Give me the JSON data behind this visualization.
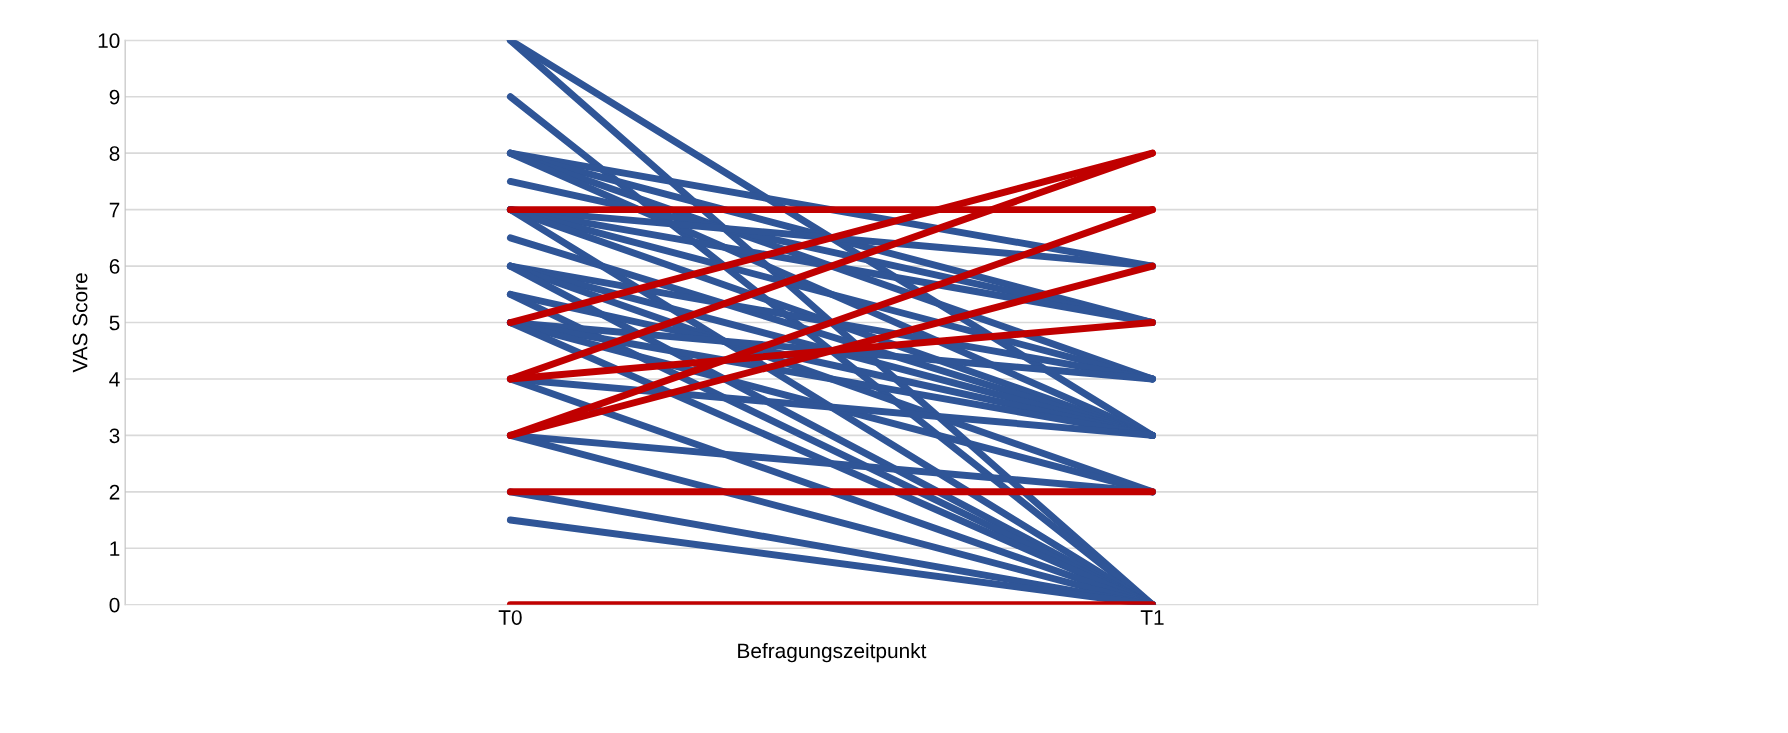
{
  "chart_data": {
    "type": "line",
    "xlabel": "Befragungszeitpunkt",
    "ylabel": "VAS Score",
    "categories": [
      "T0",
      "T1"
    ],
    "ylim": [
      0,
      10
    ],
    "yticks": [
      0,
      1,
      2,
      3,
      4,
      5,
      6,
      7,
      8,
      9,
      10
    ],
    "grid": "y",
    "legend": false,
    "series": [
      {
        "color": "#2f5597",
        "values": [
          10,
          0
        ]
      },
      {
        "color": "#2f5597",
        "values": [
          10,
          3
        ]
      },
      {
        "color": "#2f5597",
        "values": [
          9,
          0
        ]
      },
      {
        "color": "#2f5597",
        "values": [
          8,
          6
        ]
      },
      {
        "color": "#2f5597",
        "values": [
          8,
          5
        ]
      },
      {
        "color": "#2f5597",
        "values": [
          8,
          4
        ]
      },
      {
        "color": "#2f5597",
        "values": [
          8,
          3
        ]
      },
      {
        "color": "#2f5597",
        "values": [
          7.5,
          5
        ]
      },
      {
        "color": "#2f5597",
        "values": [
          7,
          6
        ]
      },
      {
        "color": "#2f5597",
        "values": [
          7,
          5
        ]
      },
      {
        "color": "#2f5597",
        "values": [
          7,
          4
        ]
      },
      {
        "color": "#2f5597",
        "values": [
          7,
          3
        ]
      },
      {
        "color": "#2f5597",
        "values": [
          7,
          0
        ]
      },
      {
        "color": "#2f5597",
        "values": [
          6.5,
          3
        ]
      },
      {
        "color": "#2f5597",
        "values": [
          6,
          4
        ]
      },
      {
        "color": "#2f5597",
        "values": [
          6,
          3
        ]
      },
      {
        "color": "#2f5597",
        "values": [
          6,
          2
        ]
      },
      {
        "color": "#2f5597",
        "values": [
          6,
          0
        ]
      },
      {
        "color": "#2f5597",
        "values": [
          5.5,
          3
        ]
      },
      {
        "color": "#2f5597",
        "values": [
          5.5,
          0
        ]
      },
      {
        "color": "#2f5597",
        "values": [
          5,
          4
        ]
      },
      {
        "color": "#2f5597",
        "values": [
          5,
          3
        ]
      },
      {
        "color": "#2f5597",
        "values": [
          5,
          2
        ]
      },
      {
        "color": "#2f5597",
        "values": [
          5,
          0
        ]
      },
      {
        "color": "#2f5597",
        "values": [
          4,
          3
        ]
      },
      {
        "color": "#2f5597",
        "values": [
          4,
          0
        ]
      },
      {
        "color": "#2f5597",
        "values": [
          3,
          2
        ]
      },
      {
        "color": "#2f5597",
        "values": [
          3,
          0
        ]
      },
      {
        "color": "#2f5597",
        "values": [
          2,
          0
        ]
      },
      {
        "color": "#2f5597",
        "values": [
          1.5,
          0
        ]
      },
      {
        "color": "#c00000",
        "values": [
          0,
          0
        ]
      },
      {
        "color": "#c00000",
        "values": [
          2,
          2
        ]
      },
      {
        "color": "#c00000",
        "values": [
          7,
          7
        ]
      },
      {
        "color": "#c00000",
        "values": [
          5,
          8
        ]
      },
      {
        "color": "#c00000",
        "values": [
          4,
          8
        ]
      },
      {
        "color": "#c00000",
        "values": [
          3,
          7
        ]
      },
      {
        "color": "#c00000",
        "values": [
          3,
          6
        ]
      },
      {
        "color": "#c00000",
        "values": [
          4,
          5
        ]
      }
    ]
  }
}
